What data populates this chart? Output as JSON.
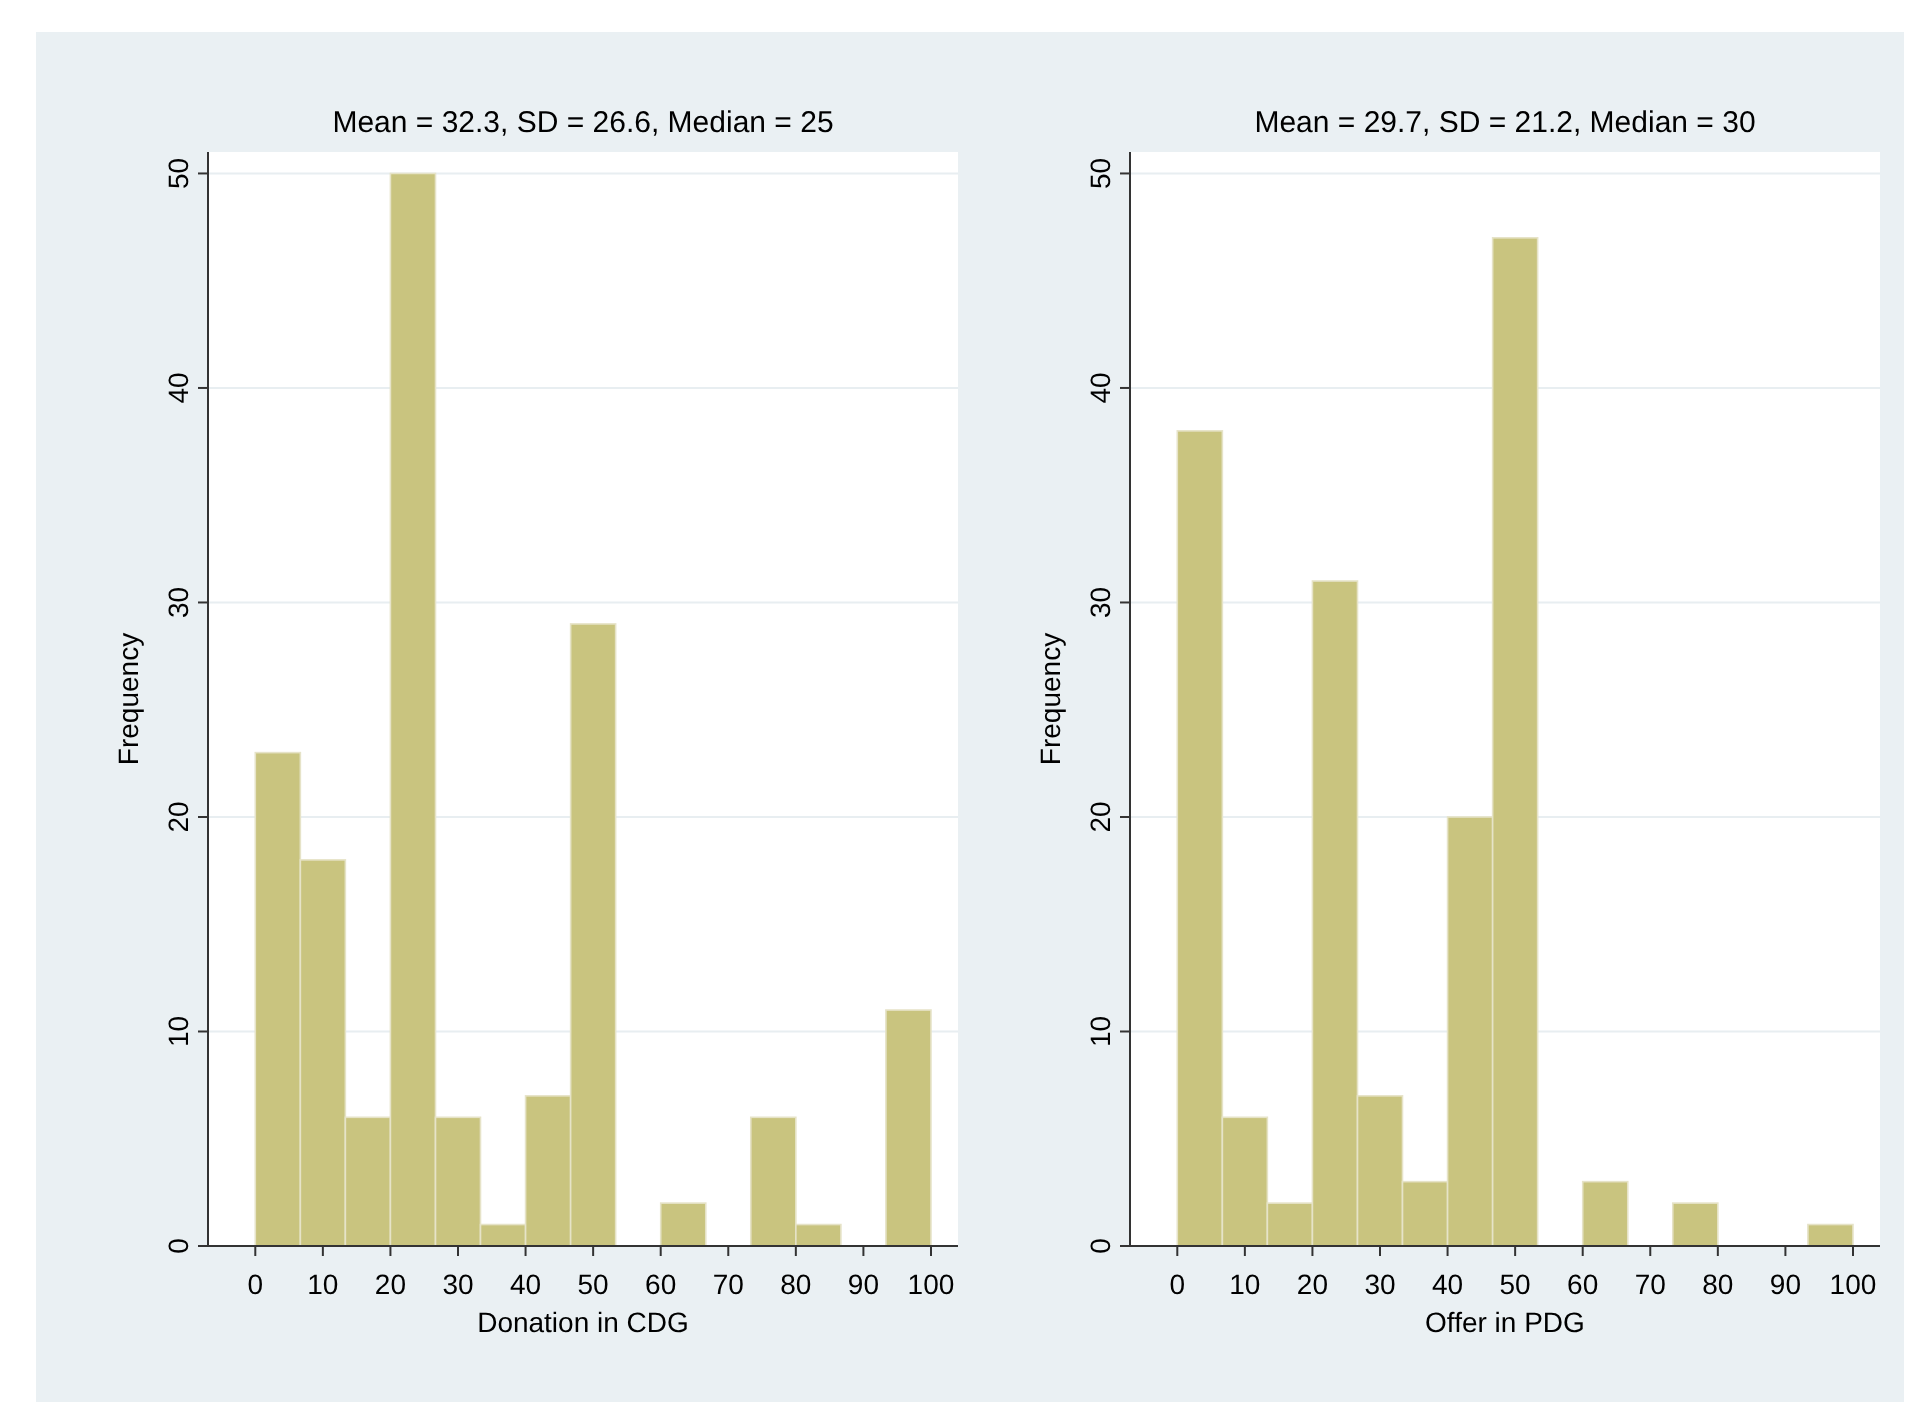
{
  "chart_data": [
    {
      "type": "histogram",
      "title": "Mean = 32.3, SD = 26.6, Median = 25",
      "xlabel": "Donation in CDG",
      "ylabel": "Frequency",
      "bins": [
        0,
        6.67,
        13.33,
        20,
        26.67,
        33.33,
        40,
        46.67,
        53.33,
        60,
        66.67,
        73.33,
        80,
        86.67,
        93.33,
        100
      ],
      "values": [
        23,
        18,
        6,
        50,
        6,
        1,
        7,
        29,
        0,
        2,
        0,
        6,
        1,
        0,
        11
      ],
      "color": "#c9c47f",
      "xlim": [
        -7,
        104
      ],
      "xticks": [
        0,
        10,
        20,
        30,
        40,
        50,
        60,
        70,
        80,
        90,
        100
      ],
      "ylim": [
        0,
        51
      ],
      "yticks": [
        0,
        10,
        20,
        30,
        40,
        50
      ],
      "grid": "y"
    },
    {
      "type": "histogram",
      "title": "Mean = 29.7, SD = 21.2, Median = 30",
      "xlabel": "Offer in PDG",
      "ylabel": "Frequency",
      "bins": [
        0,
        6.67,
        13.33,
        20,
        26.67,
        33.33,
        40,
        46.67,
        53.33,
        60,
        66.67,
        73.33,
        80,
        86.67,
        93.33,
        100
      ],
      "values": [
        38,
        6,
        2,
        31,
        7,
        3,
        20,
        47,
        0,
        3,
        0,
        2,
        0,
        0,
        1
      ],
      "color": "#c9c47f",
      "xlim": [
        -7,
        104
      ],
      "xticks": [
        0,
        10,
        20,
        30,
        40,
        50,
        60,
        70,
        80,
        90,
        100
      ],
      "ylim": [
        0,
        51
      ],
      "yticks": [
        0,
        10,
        20,
        30,
        40,
        50
      ],
      "grid": "y"
    }
  ]
}
